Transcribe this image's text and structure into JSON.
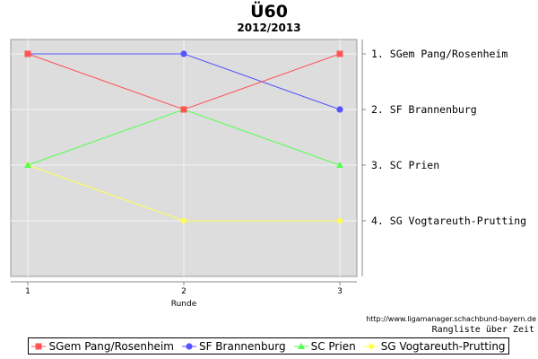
{
  "chart_data": {
    "type": "line",
    "title": "Ü60",
    "subtitle": "2012/2013",
    "xlabel": "Runde",
    "x": [
      1,
      2,
      3
    ],
    "y_tick_labels": [
      "1.  SGem Pang/Rosenheim",
      "2.  SF Brannenburg",
      "3.  SC Prien",
      "4.  SG Vogtareuth-Prutting"
    ],
    "ylim": [
      0.5,
      4.5
    ],
    "y_inverted": true,
    "grid": true,
    "legend_position": "bottom",
    "series": [
      {
        "name": "SGem Pang/Rosenheim",
        "values": [
          1,
          2,
          1
        ],
        "color": "#ff5555",
        "marker": "square"
      },
      {
        "name": "SF Brannenburg",
        "values": [
          1,
          1,
          2
        ],
        "color": "#5555ff",
        "marker": "circle"
      },
      {
        "name": "SC Prien",
        "values": [
          3,
          2,
          3
        ],
        "color": "#55ff55",
        "marker": "triangle"
      },
      {
        "name": "SG Vogtareuth-Prutting",
        "values": [
          3,
          4,
          4
        ],
        "color": "#ffff55",
        "marker": "diamond"
      }
    ]
  },
  "source_url": "http://www.ligamanager.schachbund-bayern.de",
  "caption": "Rangliste über Zeit"
}
